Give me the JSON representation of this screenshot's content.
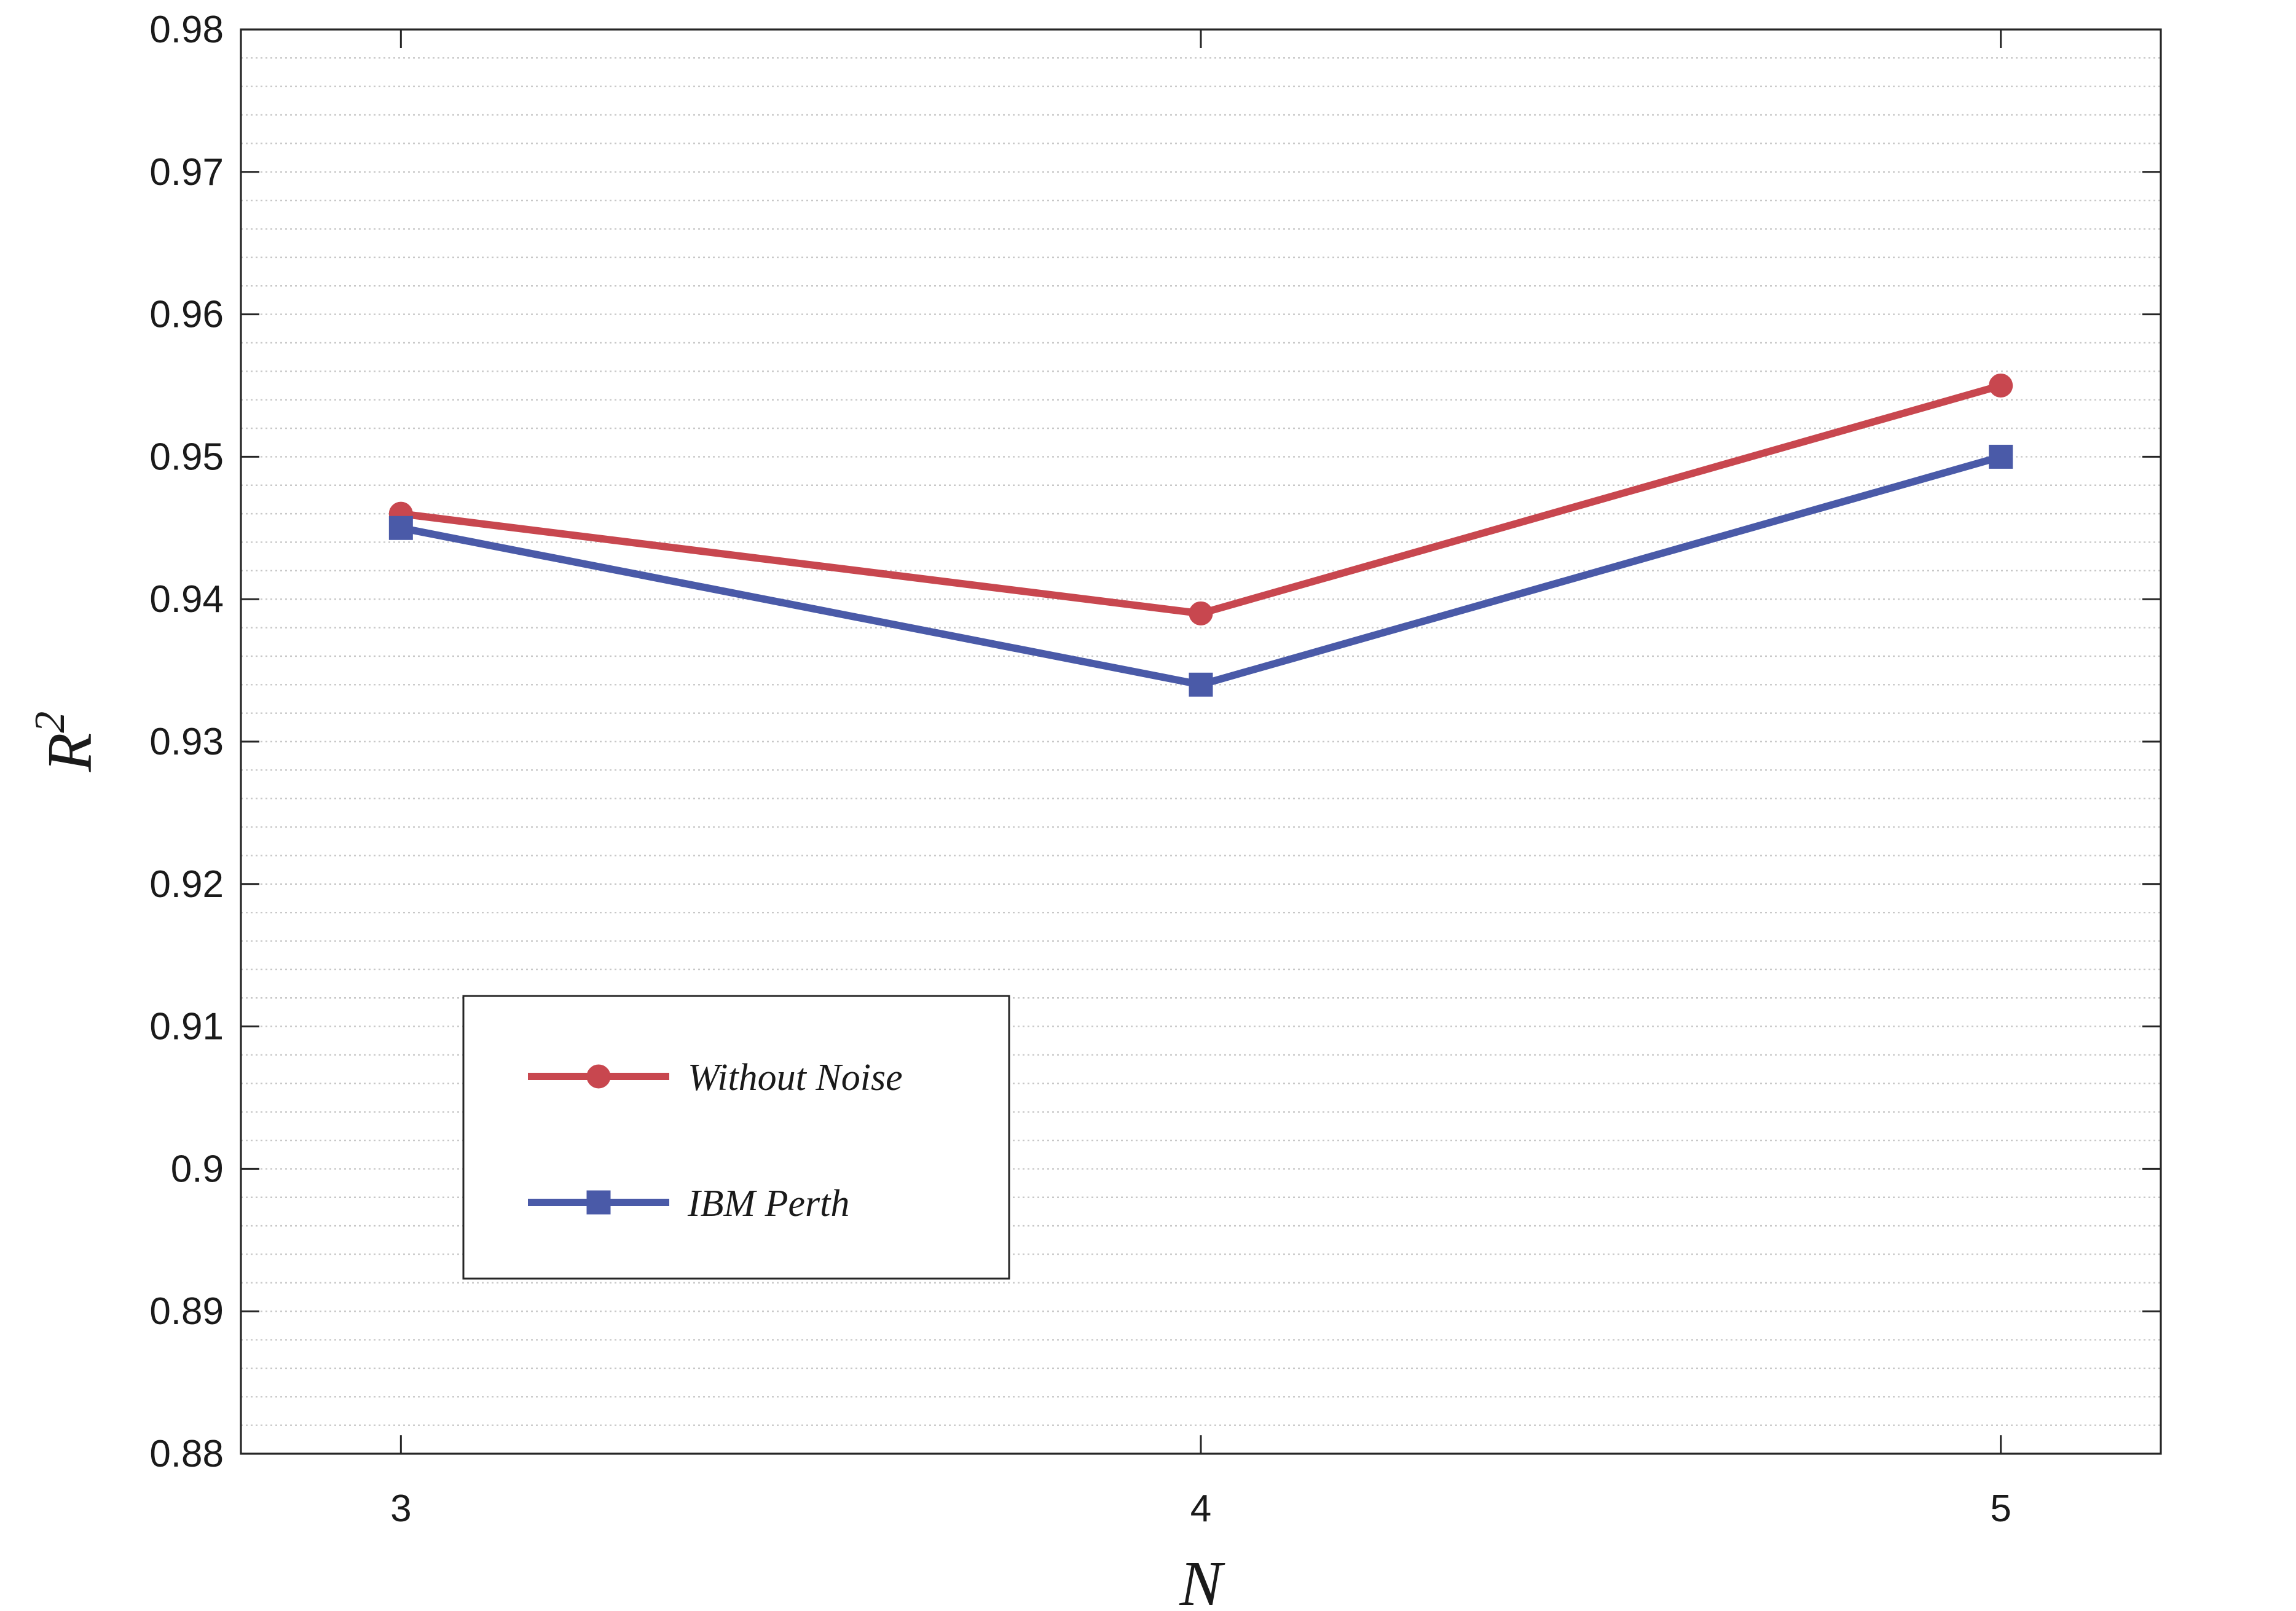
{
  "chart_data": {
    "type": "line",
    "xlabel": "N",
    "ylabel": "R",
    "ylabel_superscript": "2",
    "x": [
      3,
      4,
      5
    ],
    "xlim": [
      2.8,
      5.2
    ],
    "ylim": [
      0.88,
      0.98
    ],
    "x_ticks": [
      "3",
      "4",
      "5"
    ],
    "y_ticks": [
      "0.88",
      "0.89",
      "0.9",
      "0.91",
      "0.92",
      "0.93",
      "0.94",
      "0.95",
      "0.96",
      "0.97",
      "0.98"
    ],
    "grid": "minor horizontal dotted",
    "legend_position": "lower-left",
    "series": [
      {
        "name": "Without Noise",
        "values": [
          0.946,
          0.939,
          0.955
        ],
        "color": "#c8474f",
        "marker": "circle"
      },
      {
        "name": "IBM Perth",
        "values": [
          0.945,
          0.934,
          0.95
        ],
        "color": "#4a5aa8",
        "marker": "square"
      }
    ]
  }
}
